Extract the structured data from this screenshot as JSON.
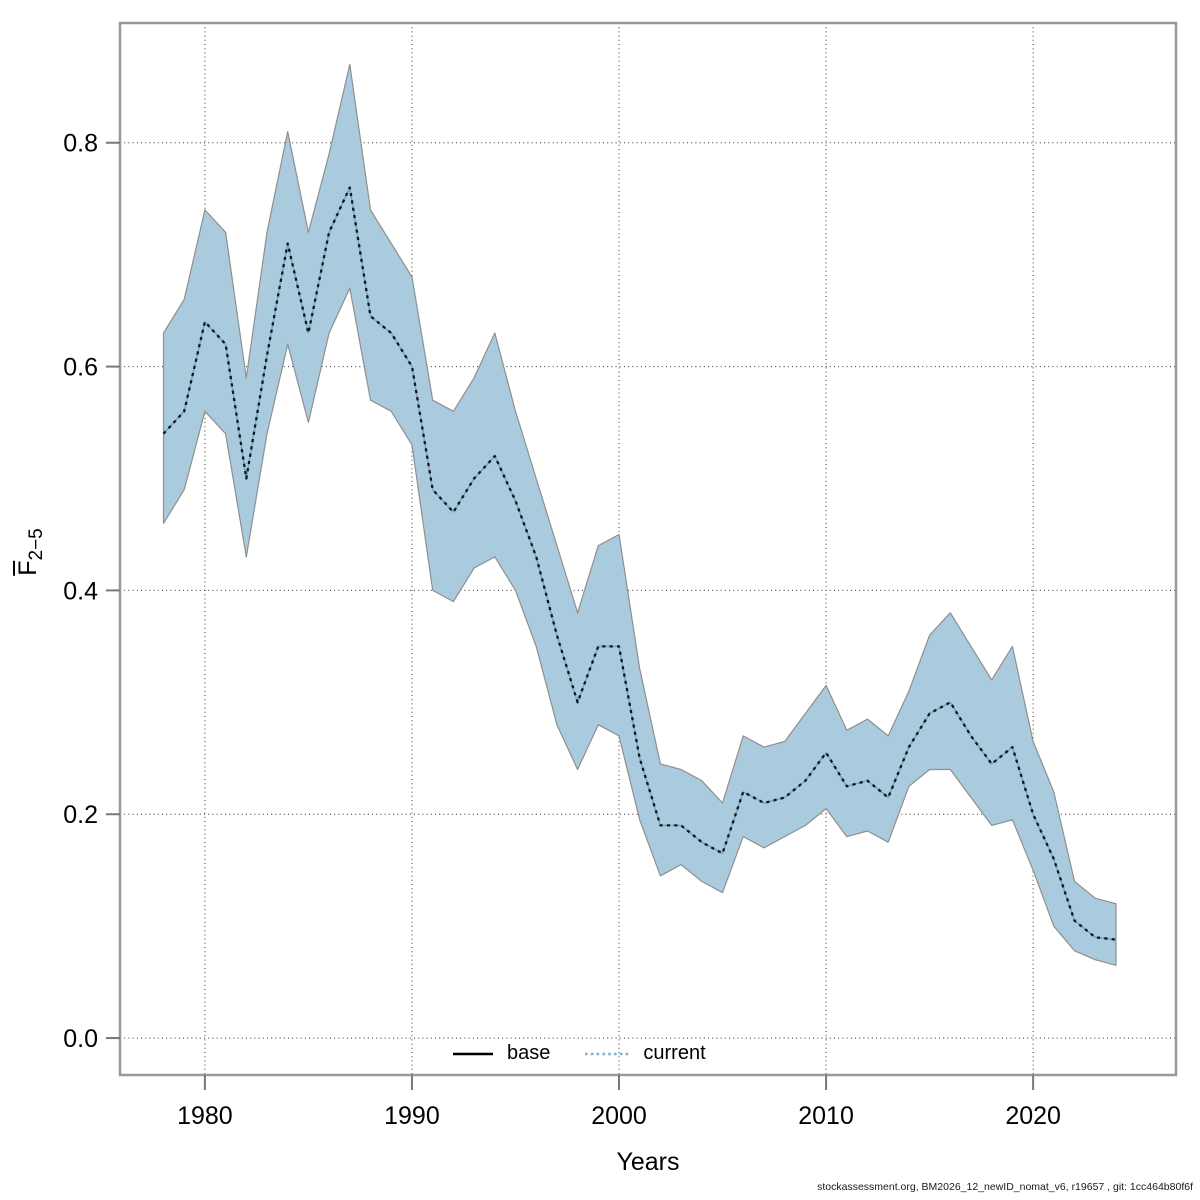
{
  "chart_data": {
    "type": "line",
    "title": "",
    "xlabel": "Years",
    "ylabel": {
      "main": "F",
      "overbar": true,
      "subscript": "2−5"
    },
    "x": [
      1978,
      1979,
      1980,
      1981,
      1982,
      1983,
      1984,
      1985,
      1986,
      1987,
      1988,
      1989,
      1990,
      1991,
      1992,
      1993,
      1994,
      1995,
      1996,
      1997,
      1998,
      1999,
      2000,
      2001,
      2002,
      2003,
      2004,
      2005,
      2006,
      2007,
      2008,
      2009,
      2010,
      2011,
      2012,
      2013,
      2014,
      2015,
      2016,
      2017,
      2018,
      2019,
      2020,
      2021,
      2022,
      2023,
      2024
    ],
    "series": [
      {
        "name": "current",
        "style": "dotted",
        "line_color": "#141414",
        "under_line_color": "#69a9cf",
        "values": [
          0.54,
          0.56,
          0.64,
          0.62,
          0.5,
          0.61,
          0.71,
          0.63,
          0.72,
          0.76,
          0.645,
          0.63,
          0.6,
          0.49,
          0.47,
          0.5,
          0.52,
          0.48,
          0.43,
          0.36,
          0.3,
          0.35,
          0.35,
          0.25,
          0.19,
          0.19,
          0.175,
          0.165,
          0.22,
          0.21,
          0.215,
          0.23,
          0.255,
          0.225,
          0.23,
          0.215,
          0.26,
          0.29,
          0.3,
          0.27,
          0.245,
          0.26,
          0.2,
          0.16,
          0.105,
          0.09,
          0.088
        ]
      }
    ],
    "band": {
      "name": "confidence-interval",
      "fill": "#aacbdd",
      "edge_color": "#8f8f8f",
      "lower": [
        0.46,
        0.49,
        0.56,
        0.54,
        0.43,
        0.54,
        0.62,
        0.55,
        0.63,
        0.67,
        0.57,
        0.56,
        0.53,
        0.4,
        0.39,
        0.42,
        0.43,
        0.4,
        0.35,
        0.28,
        0.24,
        0.28,
        0.27,
        0.195,
        0.145,
        0.155,
        0.14,
        0.13,
        0.18,
        0.17,
        0.18,
        0.19,
        0.205,
        0.18,
        0.185,
        0.175,
        0.225,
        0.24,
        0.24,
        0.215,
        0.19,
        0.195,
        0.15,
        0.1,
        0.078,
        0.07,
        0.065
      ],
      "upper": [
        0.63,
        0.66,
        0.74,
        0.72,
        0.59,
        0.72,
        0.81,
        0.72,
        0.79,
        0.87,
        0.74,
        0.71,
        0.68,
        0.57,
        0.56,
        0.59,
        0.63,
        0.56,
        0.5,
        0.44,
        0.38,
        0.44,
        0.45,
        0.33,
        0.245,
        0.24,
        0.23,
        0.21,
        0.27,
        0.26,
        0.265,
        0.29,
        0.315,
        0.275,
        0.285,
        0.27,
        0.31,
        0.36,
        0.38,
        0.35,
        0.32,
        0.35,
        0.265,
        0.22,
        0.14,
        0.125,
        0.12
      ]
    },
    "x_ticks": [
      1980,
      1990,
      2000,
      2010,
      2020
    ],
    "x_tick_labels": [
      "1980",
      "1990",
      "2000",
      "2010",
      "2020"
    ],
    "y_ticks": [
      0.0,
      0.2,
      0.4,
      0.6,
      0.8
    ],
    "y_tick_labels": [
      "0.0",
      "0.2",
      "0.4",
      "0.6",
      "0.8"
    ],
    "xlim": [
      1975.9,
      2026.9
    ],
    "ylim": [
      -0.033,
      0.907
    ],
    "grid": true,
    "grid_color": "#333333",
    "box_color": "#999999",
    "tick_color": "#777777",
    "legend_position": "bottom-center"
  },
  "legend": {
    "base_label": "base",
    "current_label": "current",
    "base_line_color": "#000000",
    "current_line_color": "#7ab0d4"
  },
  "footer": {
    "text": "stockassessment.org, BM2026_12_newID_nomat_v6, r19657 , git: 1cc464b80f6f"
  }
}
